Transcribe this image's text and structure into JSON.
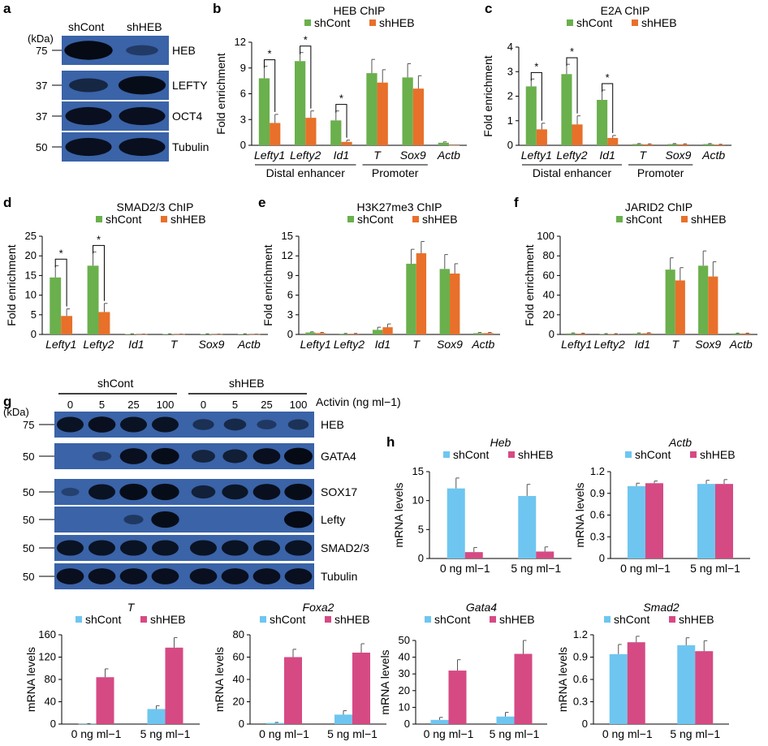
{
  "panels": {
    "a": "a",
    "b": "b",
    "c": "c",
    "d": "d",
    "e": "e",
    "f": "f",
    "g": "g",
    "h": "h"
  },
  "colors": {
    "shCont_chip": "#6ab04c",
    "shHEB_chip": "#e8702a",
    "shCont_mrna": "#6ec6f0",
    "shHEB_mrna": "#d64a84",
    "blot_bg": "#3a63a8",
    "blot_band": "#050a14"
  },
  "blot_a": {
    "kda_label": "(kDa)",
    "columns": [
      "shCont",
      "shHEB"
    ],
    "rows": [
      {
        "label": "HEB",
        "marker": "75",
        "intensity": [
          1.0,
          0.15
        ]
      },
      {
        "label": "LEFTY",
        "marker": "37",
        "intensity": [
          0.5,
          0.95
        ]
      },
      {
        "label": "OCT4",
        "marker": "37",
        "intensity": [
          0.9,
          0.9
        ]
      },
      {
        "label": "Tubulin",
        "marker": "50",
        "intensity": [
          0.9,
          0.9
        ]
      }
    ]
  },
  "blot_g": {
    "kda_label": "(kDa)",
    "groups": [
      "shCont",
      "shHEB"
    ],
    "doses": [
      "0",
      "5",
      "25",
      "100",
      "0",
      "5",
      "25",
      "100"
    ],
    "activin_label": "Activin (ng ml−1)",
    "rows": [
      {
        "label": "HEB",
        "marker": "75",
        "intensity": [
          0.85,
          0.9,
          0.85,
          0.85,
          0.35,
          0.45,
          0.2,
          0.3
        ]
      },
      {
        "label": "GATA4",
        "marker": "50",
        "intensity": [
          0.0,
          0.15,
          0.9,
          0.95,
          0.55,
          0.65,
          0.9,
          1.0
        ]
      },
      {
        "label": "SOX17",
        "marker": "50",
        "intensity": [
          0.05,
          0.85,
          0.95,
          0.95,
          0.6,
          0.8,
          0.9,
          0.95
        ]
      },
      {
        "label": "Lefty",
        "marker": "50",
        "intensity": [
          0.0,
          0.0,
          0.2,
          0.95,
          0.0,
          0.0,
          0.0,
          1.0
        ]
      },
      {
        "label": "SMAD2/3",
        "marker": "50",
        "intensity": [
          0.85,
          0.85,
          0.85,
          0.85,
          0.85,
          0.85,
          0.85,
          0.85
        ]
      },
      {
        "label": "Tubulin",
        "marker": "50",
        "intensity": [
          0.9,
          0.9,
          0.9,
          0.9,
          0.9,
          0.9,
          0.9,
          0.9
        ]
      }
    ]
  },
  "chart_data": [
    {
      "id": "b",
      "type": "bar",
      "title": "HEB ChIP",
      "ylabel": "Fold enrichment",
      "ylim": [
        0,
        12
      ],
      "yticks": [
        0,
        3,
        6,
        9,
        12
      ],
      "categories": [
        "Lefty1",
        "Lefty2",
        "Id1",
        "T",
        "Sox9",
        "Actb"
      ],
      "series": [
        {
          "name": "shCont",
          "values": [
            7.8,
            9.8,
            2.9,
            8.4,
            7.9,
            0.3
          ],
          "errors": [
            1.4,
            1.0,
            1.1,
            1.6,
            1.6,
            0.1
          ]
        },
        {
          "name": "shHEB",
          "values": [
            2.6,
            3.2,
            0.4,
            7.3,
            6.6,
            0.0
          ],
          "errors": [
            1.0,
            0.8,
            0.2,
            1.5,
            1.5,
            0.0
          ]
        }
      ],
      "significant": [
        "Lefty1",
        "Lefty2",
        "Id1"
      ],
      "sig_mark": "*",
      "groups": [
        {
          "label": "Distal enhancer",
          "span": [
            0,
            2
          ]
        },
        {
          "label": "Promoter",
          "span": [
            3,
            4
          ]
        }
      ]
    },
    {
      "id": "c",
      "type": "bar",
      "title": "E2A ChIP",
      "ylabel": "Fold enrichment",
      "ylim": [
        0,
        4
      ],
      "yticks": [
        0,
        1,
        2,
        3,
        4
      ],
      "categories": [
        "Lefty1",
        "Lefty2",
        "Id1",
        "T",
        "Sox9",
        "Actb"
      ],
      "series": [
        {
          "name": "shCont",
          "values": [
            2.4,
            2.9,
            1.85,
            0.05,
            0.05,
            0.05
          ],
          "errors": [
            0.3,
            0.4,
            0.4,
            0.02,
            0.02,
            0.02
          ]
        },
        {
          "name": "shHEB",
          "values": [
            0.65,
            0.85,
            0.3,
            0.04,
            0.04,
            0.03
          ],
          "errors": [
            0.25,
            0.35,
            0.1,
            0.02,
            0.02,
            0.01
          ]
        }
      ],
      "significant": [
        "Lefty1",
        "Lefty2",
        "Id1"
      ],
      "sig_mark": "*",
      "groups": [
        {
          "label": "Distal enhancer",
          "span": [
            0,
            2
          ]
        },
        {
          "label": "Promoter",
          "span": [
            3,
            4
          ]
        }
      ]
    },
    {
      "id": "d",
      "type": "bar",
      "title": "SMAD2/3 ChIP",
      "ylabel": "Fold enrichment",
      "ylim": [
        0,
        25
      ],
      "yticks": [
        0,
        5,
        10,
        15,
        20,
        25
      ],
      "categories": [
        "Lefty1",
        "Lefty2",
        "Id1",
        "T",
        "Sox9",
        "Actb"
      ],
      "series": [
        {
          "name": "shCont",
          "values": [
            14.5,
            17.5,
            0.1,
            0.1,
            0.1,
            0.1
          ],
          "errors": [
            3.0,
            3.5,
            0.05,
            0.05,
            0.05,
            0.05
          ]
        },
        {
          "name": "shHEB",
          "values": [
            4.7,
            5.7,
            0.05,
            0.05,
            0.05,
            0.05
          ],
          "errors": [
            1.8,
            2.2,
            0.02,
            0.02,
            0.02,
            0.02
          ]
        }
      ],
      "significant": [
        "Lefty1",
        "Lefty2"
      ],
      "sig_mark": "*",
      "groups": []
    },
    {
      "id": "e",
      "type": "bar",
      "title": "H3K27me3 ChIP",
      "ylabel": "Fold enrichment",
      "ylim": [
        0,
        15
      ],
      "yticks": [
        0,
        3,
        6,
        9,
        12,
        15
      ],
      "categories": [
        "Lefty1",
        "Lefty2",
        "Id1",
        "T",
        "Sox9",
        "Actb"
      ],
      "series": [
        {
          "name": "shCont",
          "values": [
            0.3,
            0.1,
            0.7,
            10.8,
            10.0,
            0.2
          ],
          "errors": [
            0.1,
            0.05,
            0.4,
            2.2,
            2.2,
            0.1
          ]
        },
        {
          "name": "shHEB",
          "values": [
            0.2,
            0.1,
            1.1,
            12.4,
            9.3,
            0.2
          ],
          "errors": [
            0.1,
            0.05,
            0.5,
            1.8,
            1.5,
            0.1
          ]
        }
      ],
      "significant": [],
      "sig_mark": "*",
      "groups": []
    },
    {
      "id": "f",
      "type": "bar",
      "title": "JARID2 ChIP",
      "ylabel": "Fold enrichment",
      "ylim": [
        0,
        100
      ],
      "yticks": [
        0,
        20,
        40,
        60,
        80,
        100
      ],
      "categories": [
        "Lefty1",
        "Lefty2",
        "Id1",
        "T",
        "Sox9",
        "Actb"
      ],
      "series": [
        {
          "name": "shCont",
          "values": [
            1.0,
            0.5,
            1.0,
            66,
            70,
            1.0
          ],
          "errors": [
            0.5,
            0.3,
            0.5,
            12,
            15,
            0.3
          ]
        },
        {
          "name": "shHEB",
          "values": [
            0.8,
            0.5,
            1.2,
            55,
            59,
            1.0
          ],
          "errors": [
            0.4,
            0.3,
            0.5,
            13,
            15,
            0.3
          ]
        }
      ],
      "significant": [],
      "sig_mark": "*",
      "groups": []
    },
    {
      "id": "h-heb",
      "type": "bar",
      "title": "Heb",
      "ylabel": "mRNA levels",
      "ylim": [
        0,
        15
      ],
      "yticks": [
        0,
        5,
        10,
        15
      ],
      "categories": [
        "0 ng ml−1",
        "5 ng ml−1"
      ],
      "series": [
        {
          "name": "shCont",
          "values": [
            12.1,
            10.8
          ],
          "errors": [
            1.8,
            2.0
          ]
        },
        {
          "name": "shHEB",
          "values": [
            1.1,
            1.2
          ],
          "errors": [
            0.8,
            0.8
          ]
        }
      ]
    },
    {
      "id": "h-actb",
      "type": "bar",
      "title": "Actb",
      "ylabel": "mRNA levels",
      "ylim": [
        0,
        1.2
      ],
      "yticks": [
        "0",
        "0.3",
        "0.6",
        "0.9",
        "1.2"
      ],
      "categories": [
        "0 ng ml−1",
        "5 ng ml−1"
      ],
      "series": [
        {
          "name": "shCont",
          "values": [
            1.0,
            1.03
          ],
          "errors": [
            0.04,
            0.05
          ]
        },
        {
          "name": "shHEB",
          "values": [
            1.04,
            1.03
          ],
          "errors": [
            0.03,
            0.06
          ]
        }
      ]
    },
    {
      "id": "h-t",
      "type": "bar",
      "title": "T",
      "ylabel": "mRNA levels",
      "ylim": [
        0,
        160
      ],
      "yticks": [
        0,
        40,
        80,
        120,
        160
      ],
      "categories": [
        "0 ng ml−1",
        "5 ng ml−1"
      ],
      "series": [
        {
          "name": "shCont",
          "values": [
            0.5,
            27
          ],
          "errors": [
            0.3,
            6
          ]
        },
        {
          "name": "shHEB",
          "values": [
            84,
            137
          ],
          "errors": [
            15,
            18
          ]
        }
      ]
    },
    {
      "id": "h-foxa2",
      "type": "bar",
      "title": "Foxa2",
      "ylabel": "mRNA levels",
      "ylim": [
        0,
        80
      ],
      "yticks": [
        0,
        20,
        40,
        60,
        80
      ],
      "categories": [
        "0 ng ml−1",
        "5 ng ml−1"
      ],
      "series": [
        {
          "name": "shCont",
          "values": [
            1.0,
            8.5
          ],
          "errors": [
            0.5,
            3.5
          ]
        },
        {
          "name": "shHEB",
          "values": [
            60,
            64
          ],
          "errors": [
            7,
            8
          ]
        }
      ]
    },
    {
      "id": "h-gata4",
      "type": "bar",
      "title": "Gata4",
      "ylabel": "mRNA levels",
      "ylim": [
        0,
        50
      ],
      "yticks": [
        0,
        10,
        20,
        30,
        40,
        50
      ],
      "categories": [
        "0 ng ml−1",
        "5 ng ml−1"
      ],
      "series": [
        {
          "name": "shCont",
          "values": [
            2.5,
            4.5
          ],
          "errors": [
            1.5,
            2.5
          ]
        },
        {
          "name": "shHEB",
          "values": [
            32,
            42
          ],
          "errors": [
            6.5,
            8
          ]
        }
      ]
    },
    {
      "id": "h-smad2",
      "type": "bar",
      "title": "Smad2",
      "ylabel": "mRNA levels",
      "ylim": [
        0,
        1.2
      ],
      "yticks": [
        "0",
        "0.3",
        "0.6",
        "0.9",
        "1.2"
      ],
      "categories": [
        "0 ng ml−1",
        "5 ng ml−1"
      ],
      "series": [
        {
          "name": "shCont",
          "values": [
            0.94,
            1.06
          ],
          "errors": [
            0.13,
            0.1
          ]
        },
        {
          "name": "shHEB",
          "values": [
            1.1,
            0.98
          ],
          "errors": [
            0.08,
            0.14
          ]
        }
      ]
    }
  ]
}
